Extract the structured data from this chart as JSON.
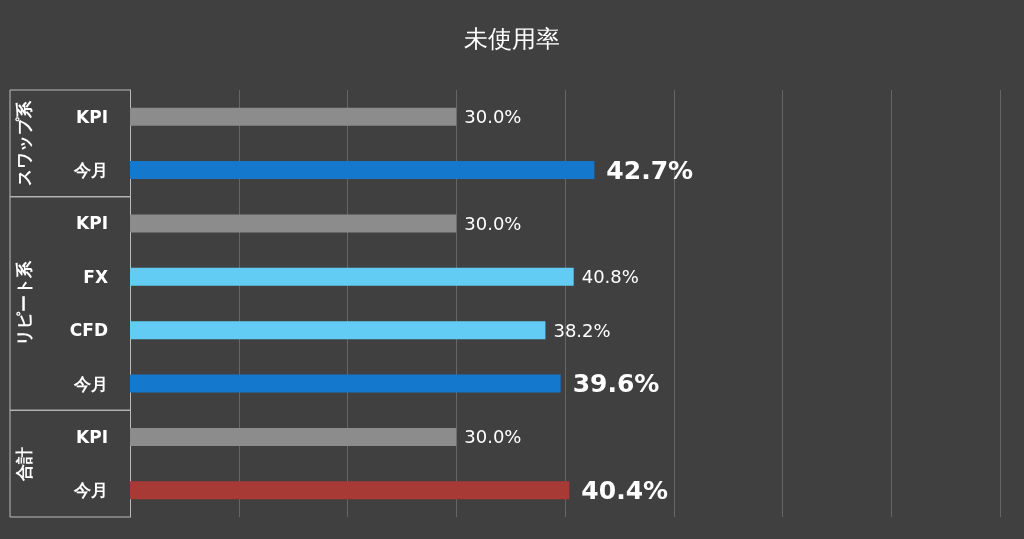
{
  "chart_data": {
    "type": "bar",
    "orientation": "horizontal",
    "title": "未使用率",
    "categories": [
      "KPI",
      "今月",
      "KPI",
      "FX",
      "CFD",
      "今月",
      "KPI",
      "今月"
    ],
    "values": [
      30.0,
      42.7,
      30.0,
      40.8,
      38.2,
      39.6,
      30.0,
      40.4
    ],
    "colors": [
      "#8c8c8c",
      "#1478cc",
      "#8c8c8c",
      "#62ccf5",
      "#62ccf5",
      "#1478cc",
      "#8c8c8c",
      "#a83a36"
    ],
    "value_labels": [
      "30.0%",
      "42.7%",
      "30.0%",
      "40.8%",
      "38.2%",
      "39.6%",
      "30.0%",
      "40.4%"
    ],
    "xlim": [
      0,
      80
    ],
    "xticks": [
      {
        "value": 0,
        "label": null
      },
      {
        "value": 10,
        "label": null
      },
      {
        "value": 20,
        "label": null
      },
      {
        "value": 30,
        "label": null
      },
      {
        "value": 40,
        "label": null
      },
      {
        "value": 50,
        "label": null
      },
      {
        "value": 60,
        "label": null
      },
      {
        "value": 70,
        "label": null
      },
      {
        "value": 80,
        "label": null
      }
    ],
    "annotations": [
      "スワップ系",
      "リピート系",
      "合計"
    ],
    "grid": "x",
    "tick_labels": "y"
  }
}
